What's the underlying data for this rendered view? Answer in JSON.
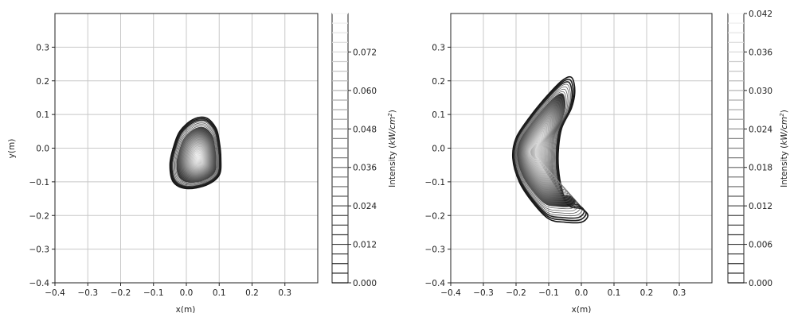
{
  "chart_data": [
    {
      "type": "heatmap",
      "subtype": "contour",
      "xlabel": "x(m)",
      "ylabel": "y(m)",
      "xlim": [
        -0.4,
        0.4
      ],
      "ylim": [
        -0.4,
        0.4
      ],
      "x_ticks": [
        -0.4,
        -0.3,
        -0.2,
        -0.1,
        0.0,
        0.1,
        0.2,
        0.3
      ],
      "x_tick_labels": [
        "−0.4",
        "−0.3",
        "−0.2",
        "−0.1",
        "0.0",
        "0.1",
        "0.2",
        "0.3"
      ],
      "y_ticks": [
        -0.4,
        -0.3,
        -0.2,
        -0.1,
        0.0,
        0.1,
        0.2,
        0.3
      ],
      "y_tick_labels": [
        "−0.4",
        "−0.3",
        "−0.2",
        "−0.1",
        "0.0",
        "0.1",
        "0.2",
        "0.3"
      ],
      "grid": true,
      "colorbar": {
        "label": "Intensity (kW/cm²)",
        "range": [
          0.0,
          0.084
        ],
        "ticks": [
          0.0,
          0.012,
          0.024,
          0.036,
          0.048,
          0.06,
          0.072
        ],
        "tick_labels": [
          "0.000",
          "0.012",
          "0.024",
          "0.036",
          "0.048",
          "0.060",
          "0.072"
        ],
        "n_levels": 28
      },
      "peak": {
        "x": 0.04,
        "y": -0.04,
        "value": 0.078
      },
      "outer_contour": [
        [
          -0.02,
          0.05
        ],
        [
          0.02,
          0.085
        ],
        [
          0.06,
          0.09
        ],
        [
          0.09,
          0.06
        ],
        [
          0.1,
          0.02
        ],
        [
          0.105,
          -0.03
        ],
        [
          0.1,
          -0.08
        ],
        [
          0.06,
          -0.11
        ],
        [
          0.0,
          -0.12
        ],
        [
          -0.04,
          -0.1
        ],
        [
          -0.05,
          -0.05
        ],
        [
          -0.04,
          0.0
        ]
      ]
    },
    {
      "type": "heatmap",
      "subtype": "contour",
      "xlabel": "x(m)",
      "ylabel": "",
      "xlim": [
        -0.4,
        0.4
      ],
      "ylim": [
        -0.4,
        0.4
      ],
      "x_ticks": [
        -0.4,
        -0.3,
        -0.2,
        -0.1,
        0.0,
        0.1,
        0.2,
        0.3
      ],
      "x_tick_labels": [
        "−0.4",
        "−0.3",
        "−0.2",
        "−0.1",
        "0.0",
        "0.1",
        "0.2",
        "0.3"
      ],
      "y_ticks": [
        -0.4,
        -0.3,
        -0.2,
        -0.1,
        0.0,
        0.1,
        0.2,
        0.3
      ],
      "y_tick_labels": [
        "−0.4",
        "−0.3",
        "−0.2",
        "−0.1",
        "0.0",
        "0.1",
        "0.2",
        "0.3"
      ],
      "grid": true,
      "colorbar": {
        "label": "Intensity (kW/cm²)",
        "range": [
          0.0,
          0.042
        ],
        "ticks": [
          0.0,
          0.006,
          0.012,
          0.018,
          0.024,
          0.03,
          0.036,
          0.042
        ],
        "tick_labels": [
          "0.000",
          "0.006",
          "0.012",
          "0.018",
          "0.024",
          "0.030",
          "0.036",
          "0.042"
        ],
        "n_levels": 28
      },
      "peak": {
        "x": -0.15,
        "y": -0.01,
        "value": 0.041
      },
      "outer_contour": [
        [
          -0.06,
          0.2
        ],
        [
          -0.03,
          0.21
        ],
        [
          -0.02,
          0.17
        ],
        [
          -0.03,
          0.12
        ],
        [
          -0.06,
          0.06
        ],
        [
          -0.07,
          0.0
        ],
        [
          -0.07,
          -0.06
        ],
        [
          -0.06,
          -0.12
        ],
        [
          -0.04,
          -0.17
        ],
        [
          0.0,
          -0.18
        ],
        [
          0.02,
          -0.2
        ],
        [
          0.0,
          -0.22
        ],
        [
          -0.05,
          -0.22
        ],
        [
          -0.1,
          -0.21
        ],
        [
          -0.15,
          -0.16
        ],
        [
          -0.19,
          -0.1
        ],
        [
          -0.21,
          -0.03
        ],
        [
          -0.2,
          0.03
        ],
        [
          -0.16,
          0.09
        ],
        [
          -0.11,
          0.15
        ]
      ]
    }
  ]
}
